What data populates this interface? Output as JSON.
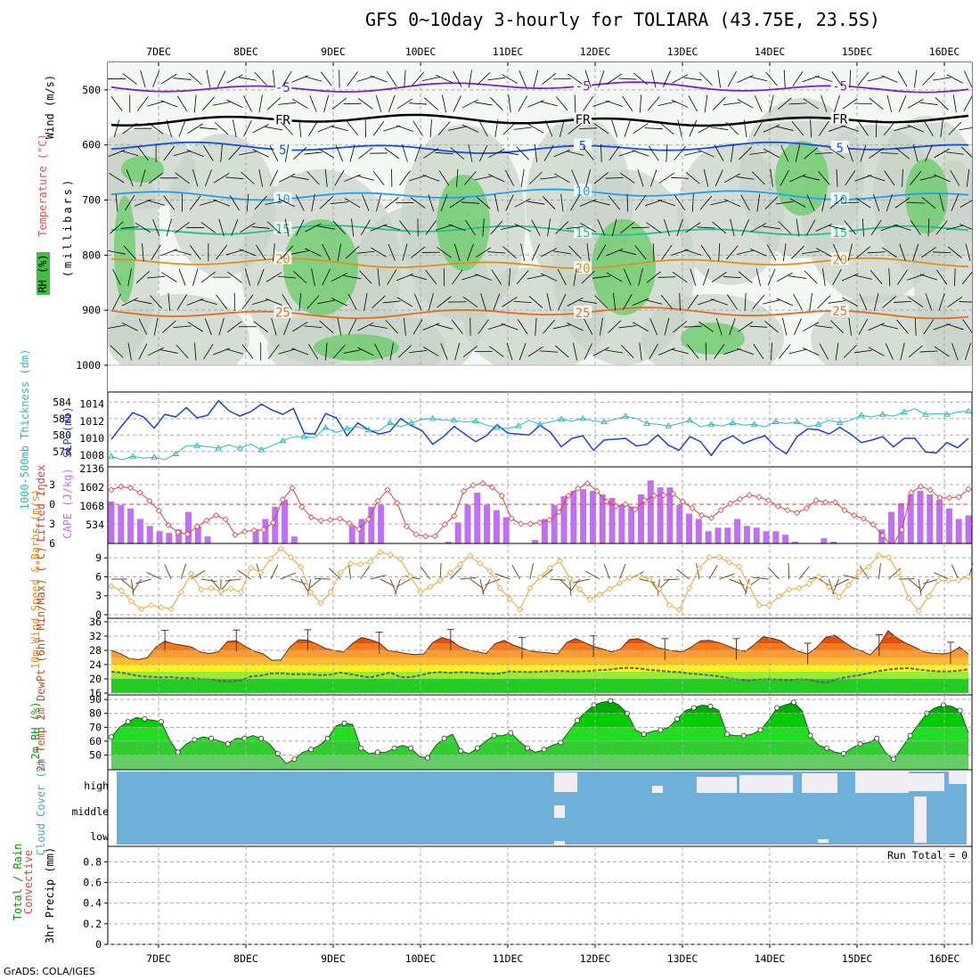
{
  "title": "GFS 0~10day 3-hourly for TOLIARA (43.75E, 23.5S)",
  "credit": "GrADS: COLA/IGES",
  "colors": {
    "rh_green": "#66cc66",
    "rh_light": "#e8f2e8",
    "rh_grey": "#c8d2c8",
    "slp": "#2040d0",
    "thickness": "#30b8b8",
    "lifted": "#e04040",
    "cape": "#c070f0",
    "wind10": "#f0a030",
    "barb": "#7a4a20",
    "cloud": "#6fb0d8",
    "rh2m": "#00bb00",
    "temp_dark": "#e05010",
    "dewpt": "#606060"
  },
  "chart_data": [
    {
      "id": "upper-air",
      "type": "contour",
      "ylabel_parts": [
        "Wind (m/s)",
        "Temperature (°C)",
        "RH (%)"
      ],
      "ylabel_sub": "(millibars)",
      "x": [
        "7DEC",
        "8DEC",
        "9DEC",
        "10DEC",
        "11DEC",
        "12DEC",
        "13DEC",
        "14DEC",
        "15DEC",
        "16DEC"
      ],
      "yticks": [
        500,
        600,
        700,
        800,
        900,
        1000
      ],
      "ylim": [
        450,
        1000
      ],
      "isotherms": [
        {
          "label": "-5",
          "level": 495,
          "color": "#8020c0"
        },
        {
          "label": "FR",
          "level": 555,
          "color": "#000000"
        },
        {
          "label": "5",
          "level": 605,
          "color": "#1050e0"
        },
        {
          "label": "10",
          "level": 690,
          "color": "#20a0f0"
        },
        {
          "label": "15",
          "level": 755,
          "color": "#20c090"
        },
        {
          "label": "20",
          "level": 815,
          "color": "#e09020"
        },
        {
          "label": "25",
          "level": 905,
          "color": "#e07020"
        }
      ]
    },
    {
      "id": "slp-thickness",
      "type": "line",
      "ylabel": "SLP (mb)",
      "ylabel2": "1000-500mb Thickness (dm)",
      "left_ticks": [
        578,
        580,
        582,
        584
      ],
      "right_ticks": [
        1008,
        1010,
        1012,
        1014
      ],
      "series": [
        {
          "name": "SLP",
          "values": [
            1009.9,
            1011.5,
            1013.0,
            1012.5,
            1011.2,
            1012.8,
            1012.5,
            1013.6,
            1012.4,
            1012.7,
            1014.4,
            1013.2,
            1012.6,
            1013.1,
            1014.0,
            1013.3,
            1012.8,
            1013.5,
            1010.6,
            1010.5,
            1012.9,
            1012.4,
            1010.3,
            1011.8,
            1011.0,
            1010.5,
            1010.8,
            1012.3,
            1011.5,
            1010.9,
            1009.3,
            1010.2,
            1011.4,
            1010.5,
            1009.6,
            1010.3,
            1011.6,
            1010.6,
            1010.5,
            1010.4,
            1011.5,
            1010.7,
            1009.0,
            1010.0,
            1010.3,
            1008.6,
            1009.8,
            1009.9,
            1010.0,
            1009.1,
            1009.3,
            1010.4,
            1009.2,
            1008.6,
            1010.2,
            1009.6,
            1008.0,
            1009.7,
            1010.3,
            1009.4,
            1009.9,
            1010.3,
            1009.0,
            1008.2,
            1010.2,
            1011.1,
            1011.0,
            1010.5,
            1011.3,
            1010.5,
            1009.5,
            1009.8,
            1010.2,
            1009.0,
            1010.0,
            1010.0,
            1008.4,
            1008.3,
            1009.5,
            1008.9,
            1010.0
          ]
        },
        {
          "name": "Thickness",
          "values": [
            577.4,
            577.0,
            577.4,
            577.2,
            577.3,
            577.0,
            577.7,
            578.7,
            578.7,
            578.6,
            578.4,
            578.8,
            578.4,
            578.9,
            578.2,
            578.7,
            579.3,
            579.8,
            579.8,
            579.7,
            580.9,
            580.3,
            580.8,
            581.0,
            580.6,
            580.5,
            581.5,
            581.0,
            581.5,
            581.9,
            582.0,
            581.8,
            581.8,
            581.6,
            581.7,
            581.2,
            580.9,
            580.8,
            581.1,
            581.8,
            581.3,
            581.6,
            581.9,
            581.7,
            582.0,
            581.7,
            581.6,
            581.9,
            582.3,
            582.0,
            581.4,
            581.3,
            581.1,
            581.4,
            581.8,
            581.0,
            581.3,
            581.1,
            581.5,
            581.2,
            581.3,
            581.0,
            581.6,
            581.4,
            581.6,
            581.0,
            581.3,
            581.8,
            581.5,
            581.8,
            582.4,
            582.2,
            582.5,
            582.3,
            582.8,
            583.2,
            582.5,
            582.6,
            582.5,
            582.8,
            582.9
          ]
        }
      ]
    },
    {
      "id": "lifted-cape",
      "type": "bar",
      "ylabel": "Lifted Index",
      "ylabel2": "CAPE (J/kg)",
      "left_ticks": [
        "-3",
        "0",
        "3",
        "6"
      ],
      "right_ticks": [
        "2136",
        "1602",
        "1068",
        "534"
      ],
      "series": [
        {
          "name": "CAPE",
          "values": [
            1200,
            1100,
            1000,
            700,
            500,
            350,
            300,
            400,
            900,
            500,
            200,
            0,
            0,
            0,
            0,
            400,
            700,
            1050,
            1250,
            200,
            0,
            0,
            0,
            0,
            0,
            500,
            700,
            1050,
            1100,
            0,
            0,
            0,
            0,
            0,
            0,
            50,
            600,
            1100,
            1450,
            1100,
            950,
            750,
            0,
            0,
            100,
            700,
            1100,
            1350,
            1500,
            1550,
            1500,
            1400,
            1300,
            1100,
            1050,
            1400,
            1800,
            1600,
            1600,
            1100,
            850,
            700,
            350,
            450,
            450,
            700,
            500,
            450,
            350,
            350,
            250,
            50,
            0,
            0,
            150,
            50,
            0,
            0,
            0,
            0,
            400,
            900,
            1150,
            1400,
            1500,
            1400,
            1250,
            1000,
            700,
            800
          ]
        },
        {
          "name": "Lifted Index",
          "values": [
            -2.2,
            -2.7,
            -2.5,
            -1.8,
            -0.5,
            1.0,
            3.2,
            4.3,
            4.6,
            3.4,
            2.5,
            1.7,
            2.3,
            4.7,
            4.2,
            4.0,
            3.9,
            2.8,
            -0.7,
            -2.5,
            0.4,
            2.0,
            2.5,
            2.4,
            2.2,
            2.9,
            3.8,
            2.3,
            -0.5,
            -2.2,
            -0.2,
            3.4,
            4.6,
            4.9,
            4.9,
            3.1,
            1.8,
            -2.0,
            -2.9,
            -3.2,
            -2.6,
            -1.3,
            2.2,
            3.0,
            3.0,
            2.8,
            2.4,
            1.2,
            -1.3,
            -2.4,
            -3.2,
            -2.0,
            -0.4,
            0.3,
            0.0,
            0.8,
            -0.6,
            -1.3,
            -1.4,
            -1.6,
            -0.4,
            0.6,
            1.7,
            2.1,
            0.9,
            -0.1,
            -0.8,
            -1.4,
            -1.1,
            -0.6,
            0.3,
            0.9,
            1.3,
            0.6,
            -0.6,
            -0.3,
            -0.3,
            0.9,
            1.7,
            2.2,
            3.1,
            4.8,
            6.4,
            3.9,
            -1.8,
            -2.7,
            -2.2,
            -1.0,
            -1.0,
            -1.1,
            -2.3
          ]
        }
      ]
    },
    {
      "id": "wind10m",
      "type": "line",
      "ylabel": "10m Wind Speed & Barbs (m/s)",
      "yticks": [
        0,
        3,
        6,
        9
      ],
      "series": [
        {
          "name": "Speed",
          "values": [
            4.5,
            3.8,
            2.1,
            0.9,
            1.5,
            1.2,
            0.9,
            3.6,
            6.5,
            4.0,
            4.2,
            3.7,
            4.1,
            3.6,
            7.4,
            6.7,
            8.9,
            10.5,
            9.1,
            7.6,
            3.6,
            1.8,
            3.6,
            6.7,
            8.1,
            8.0,
            8.4,
            9.9,
            9.5,
            8.8,
            6.1,
            3.6,
            4.4,
            5.4,
            6.7,
            8.0,
            9.3,
            8.1,
            6.9,
            4.2,
            2.5,
            0.8,
            4.2,
            5.9,
            7.4,
            8.5,
            5.7,
            4.0,
            2.4,
            3.2,
            4.1,
            5.0,
            5.8,
            6.2,
            5.6,
            4.1,
            1.5,
            0.8,
            4.2,
            7.3,
            9.1,
            9.1,
            8.3,
            7.6,
            4.6,
            1.5,
            1.5,
            2.9,
            4.0,
            4.2,
            4.9,
            6.0,
            4.4,
            2.8,
            4.7,
            6.7,
            7.6,
            9.4,
            9.1,
            6.6,
            2.6,
            0.6,
            2.9,
            5.4,
            5.4,
            5.5,
            6.0
          ]
        }
      ]
    },
    {
      "id": "temp2m",
      "type": "area",
      "ylabel": "2m Temp 2m DewPt (6hr Min/Max) (°C)",
      "yticks": [
        16,
        20,
        24,
        28,
        32,
        36
      ],
      "series": [
        {
          "name": "2m Temp",
          "values": [
            28.0,
            27.1,
            25.7,
            25.4,
            25.9,
            28.9,
            30.6,
            29.8,
            29.4,
            28.9,
            27.5,
            27.1,
            27.6,
            30.5,
            30.7,
            29.1,
            27.8,
            27.0,
            25.2,
            25.3,
            28.9,
            31.0,
            30.8,
            29.8,
            28.5,
            28.0,
            27.5,
            29.9,
            31.6,
            31.0,
            30.1,
            27.9,
            27.6,
            27.1,
            26.8,
            27.0,
            30.2,
            31.6,
            30.9,
            29.1,
            28.1,
            27.6,
            27.1,
            29.9,
            30.8,
            29.5,
            28.6,
            27.8,
            27.5,
            27.3,
            27.0,
            30.2,
            31.3,
            30.2,
            29.1,
            28.4,
            27.6,
            28.3,
            31.0,
            31.3,
            30.2,
            28.9,
            28.3,
            27.8,
            27.6,
            29.0,
            30.7,
            30.8,
            30.2,
            29.3,
            28.3,
            27.7,
            29.6,
            31.8,
            31.4,
            30.7,
            28.9,
            27.7,
            27.0,
            28.8,
            31.6,
            32.3,
            30.5,
            28.8,
            27.9,
            26.7,
            29.4,
            33.5,
            31.5,
            30.0,
            28.9,
            27.6,
            27.2,
            27.0,
            27.3,
            28.9,
            27.0
          ]
        },
        {
          "name": "2m DewPt",
          "values": [
            22.0,
            21.8,
            21.2,
            20.7,
            20.6,
            20.4,
            20.5,
            20.2,
            20.2,
            20.0,
            19.9,
            19.4,
            19.3,
            19.6,
            20.7,
            20.9,
            21.5,
            21.6,
            21.3,
            21.3,
            21.3,
            21.0,
            21.2,
            21.8,
            21.3,
            20.8,
            20.4,
            21.1,
            21.8,
            20.5,
            20.5,
            21.0,
            21.7,
            21.9,
            21.7,
            21.9,
            21.8,
            21.6,
            21.4,
            21.5,
            22.1,
            22.0,
            21.9,
            22.0,
            22.2,
            22.2,
            22.1,
            22.1,
            22.2,
            22.5,
            22.6,
            23.0,
            23.1,
            22.9,
            22.5,
            22.3,
            22.0,
            21.9,
            21.5,
            21.3,
            21.0,
            20.7,
            20.2,
            19.8,
            19.5,
            19.9,
            20.0,
            19.8,
            19.6,
            20.0,
            19.8,
            19.1,
            19.1,
            20.1,
            20.6,
            21.0,
            21.6,
            22.2,
            22.6,
            22.9,
            23.0,
            22.6,
            22.3,
            22.1,
            22.1,
            22.3,
            22.7
          ]
        }
      ]
    },
    {
      "id": "rh2m",
      "type": "area",
      "ylabel": "2m RH (%)",
      "yticks": [
        50,
        60,
        70,
        80,
        90
      ],
      "series": [
        {
          "name": "2m RH",
          "values": [
            63,
            70,
            74,
            77,
            76,
            75,
            74,
            61,
            52,
            58,
            61,
            63,
            62,
            60,
            58,
            62,
            62,
            64,
            62,
            58,
            51,
            44,
            47,
            52,
            54,
            57,
            62,
            71,
            73,
            72,
            55,
            51,
            52,
            52,
            55,
            57,
            55,
            49,
            48,
            57,
            62,
            65,
            53,
            51,
            55,
            60,
            64,
            64,
            66,
            60,
            55,
            52,
            54,
            57,
            59,
            67,
            75,
            81,
            86,
            88,
            89,
            86,
            80,
            68,
            65,
            67,
            68,
            70,
            76,
            82,
            84,
            86,
            85,
            82,
            65,
            64,
            64,
            65,
            68,
            75,
            84,
            86,
            88,
            82,
            64,
            57,
            55,
            52,
            51,
            55,
            58,
            59,
            62,
            52,
            47,
            55,
            64,
            72,
            80,
            84,
            86,
            85,
            82,
            66
          ]
        }
      ]
    },
    {
      "id": "cloud",
      "type": "heatmap",
      "ylabel": "Cloud Cover (%)",
      "levels": [
        "high",
        "middle",
        "low"
      ]
    },
    {
      "id": "precip",
      "type": "bar",
      "ylabel": "3hr Precip (mm)",
      "ylabel2": "Total / Rain",
      "ylabel3": "Convective",
      "yticks": [
        "0",
        "0.2",
        "0.4",
        "0.6",
        "0.8"
      ],
      "run_total_label": "Run Total = 0",
      "values": []
    }
  ]
}
